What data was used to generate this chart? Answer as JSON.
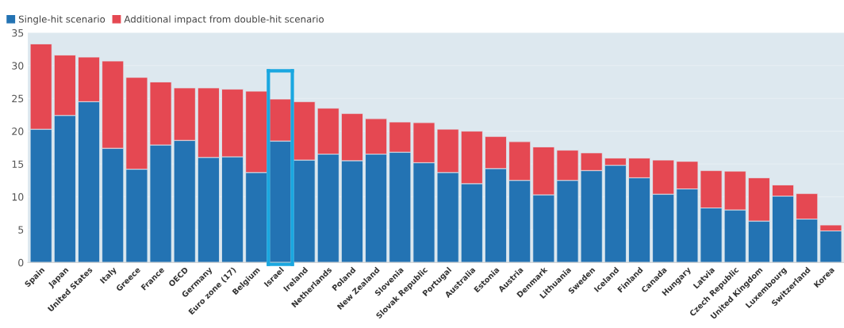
{
  "chart_data": {
    "type": "bar",
    "stacked": true,
    "categories": [
      "Spain",
      "Japan",
      "United States",
      "Italy",
      "Greece",
      "France",
      "OECD",
      "Germany",
      "Euro zone (17)",
      "Belgium",
      "Israel",
      "Ireland",
      "Netherlands",
      "Poland",
      "New Zealand",
      "Slovenia",
      "Slovak Republic",
      "Portugal",
      "Australia",
      "Estonia",
      "Austria",
      "Denmark",
      "Lithuania",
      "Sweden",
      "Iceland",
      "Finland",
      "Canada",
      "Hungary",
      "Latvia",
      "Czech Republic",
      "United Kingdom",
      "Luxembourg",
      "Switzerland",
      "Korea"
    ],
    "series": [
      {
        "name": "Single-hit scenario",
        "color": "#2373b3",
        "values": [
          20.3,
          22.4,
          24.5,
          17.4,
          14.2,
          17.9,
          18.6,
          16.0,
          16.1,
          13.7,
          18.5,
          15.6,
          16.5,
          15.5,
          16.5,
          16.8,
          15.2,
          13.7,
          12.0,
          14.3,
          12.5,
          10.3,
          12.5,
          14.0,
          14.8,
          12.9,
          10.4,
          11.2,
          8.3,
          8.0,
          6.3,
          10.1,
          6.6,
          4.8
        ]
      },
      {
        "name": "Additional impact from double-hit scenario",
        "color": "#e54852",
        "values": [
          13.0,
          9.2,
          6.8,
          13.3,
          14.0,
          9.6,
          8.0,
          10.6,
          10.3,
          12.4,
          6.4,
          8.9,
          7.0,
          7.2,
          5.4,
          4.6,
          6.1,
          6.6,
          8.0,
          4.9,
          5.9,
          7.3,
          4.6,
          2.7,
          1.1,
          3.0,
          5.2,
          4.2,
          5.7,
          5.9,
          6.6,
          1.7,
          3.9,
          0.9
        ]
      }
    ],
    "ylim": [
      0,
      35
    ],
    "yticks": [
      0,
      5,
      10,
      15,
      20,
      25,
      30,
      35
    ],
    "grid": "y",
    "legend": "top left"
  }
}
